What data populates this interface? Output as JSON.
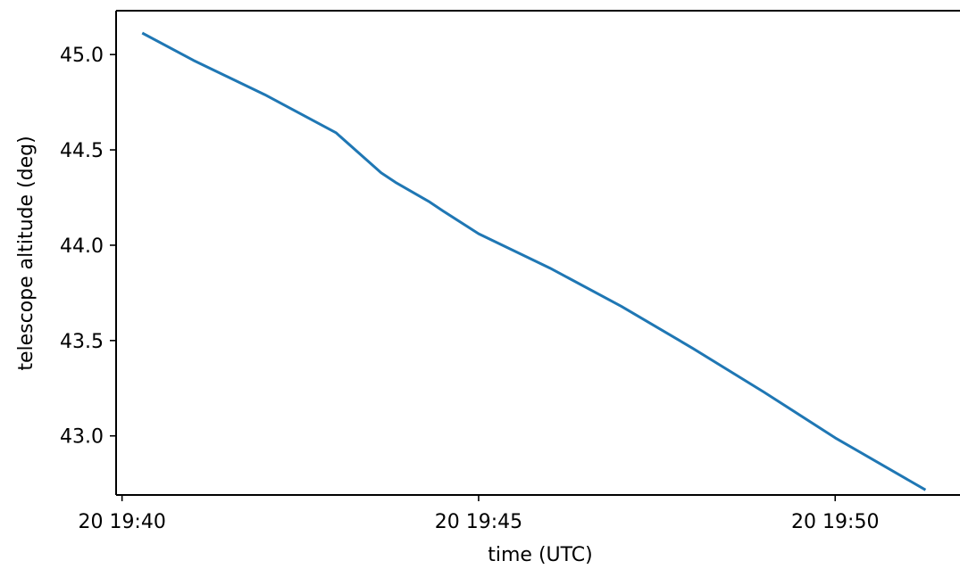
{
  "chart_data": {
    "type": "line",
    "xlabel": "time (UTC)",
    "ylabel": "telescope altitude (deg)",
    "x_axis": {
      "kind": "time",
      "range": [
        "19:39:55",
        "19:51:45"
      ],
      "ticks": [
        {
          "value": "19:40:00",
          "label": "20 19:40"
        },
        {
          "value": "19:45:00",
          "label": "20 19:45"
        },
        {
          "value": "19:50:00",
          "label": "20 19:50"
        }
      ]
    },
    "y_axis": {
      "range": [
        42.69,
        45.23
      ],
      "ticks": [
        {
          "value": 43.0,
          "label": "43.0"
        },
        {
          "value": 43.5,
          "label": "43.5"
        },
        {
          "value": 44.0,
          "label": "44.0"
        },
        {
          "value": 44.5,
          "label": "44.5"
        },
        {
          "value": 45.0,
          "label": "45.0"
        }
      ]
    },
    "grid": false,
    "series": [
      {
        "color": "#1f77b4",
        "points": [
          {
            "x": "19:40:18",
            "y": 45.11
          },
          {
            "x": "19:41:00",
            "y": 44.97
          },
          {
            "x": "19:42:00",
            "y": 44.79
          },
          {
            "x": "19:43:00",
            "y": 44.59
          },
          {
            "x": "19:43:38",
            "y": 44.38
          },
          {
            "x": "19:43:50",
            "y": 44.33
          },
          {
            "x": "19:44:18",
            "y": 44.23
          },
          {
            "x": "19:44:30",
            "y": 44.18
          },
          {
            "x": "19:45:00",
            "y": 44.06
          },
          {
            "x": "19:46:00",
            "y": 43.88
          },
          {
            "x": "19:47:00",
            "y": 43.68
          },
          {
            "x": "19:48:00",
            "y": 43.46
          },
          {
            "x": "19:49:00",
            "y": 43.23
          },
          {
            "x": "19:50:00",
            "y": 42.99
          },
          {
            "x": "19:51:15",
            "y": 42.72
          }
        ]
      }
    ]
  }
}
